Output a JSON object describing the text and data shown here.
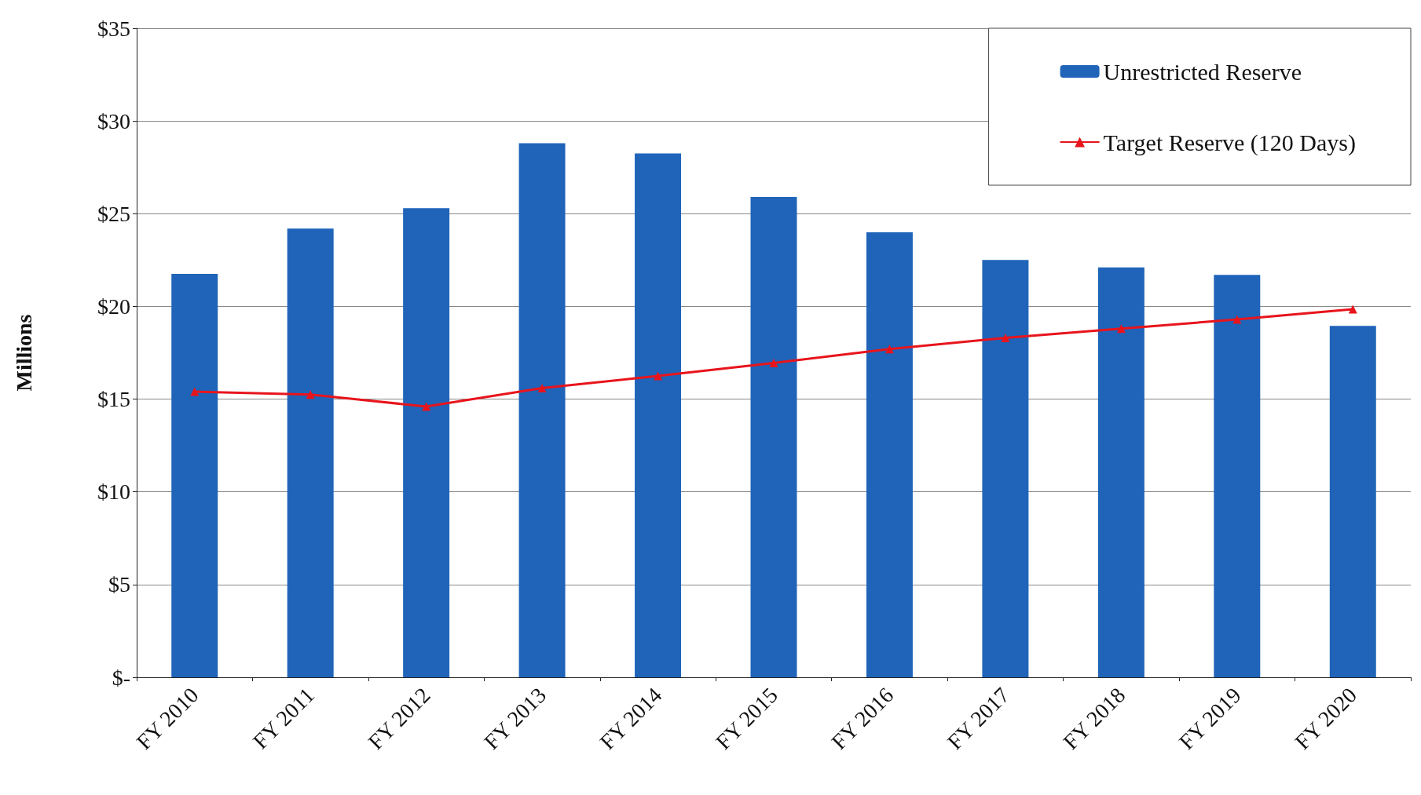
{
  "chart_data": {
    "type": "bar",
    "ylabel": "Millions",
    "categories": [
      "FY 2010",
      "FY 2011",
      "FY 2012",
      "FY 2013",
      "FY 2014",
      "FY 2015",
      "FY 2016",
      "FY 2017",
      "FY 2018",
      "FY 2019",
      "FY 2020"
    ],
    "series": [
      {
        "name": "Unrestricted Reserve",
        "color": "#1f64b9",
        "values": [
          21.75,
          24.2,
          25.3,
          28.8,
          28.25,
          25.9,
          24.0,
          22.5,
          22.1,
          21.7,
          18.95
        ]
      },
      {
        "name": "Target Reserve (120 Days)",
        "type": "line",
        "color": "#e8141c",
        "marker": "triangle",
        "values": [
          15.4,
          15.25,
          14.6,
          15.6,
          16.25,
          16.95,
          17.7,
          18.3,
          18.8,
          19.3,
          19.85
        ]
      }
    ],
    "ylim": [
      0,
      35
    ],
    "yticks": [
      {
        "value": 0,
        "label": "$-"
      },
      {
        "value": 5,
        "label": "$5"
      },
      {
        "value": 10,
        "label": "$10"
      },
      {
        "value": 15,
        "label": "$15"
      },
      {
        "value": 20,
        "label": "$20"
      },
      {
        "value": 25,
        "label": "$25"
      },
      {
        "value": 30,
        "label": "$30"
      },
      {
        "value": 35,
        "label": "$35"
      }
    ],
    "grid": "y",
    "legend": "top right"
  }
}
